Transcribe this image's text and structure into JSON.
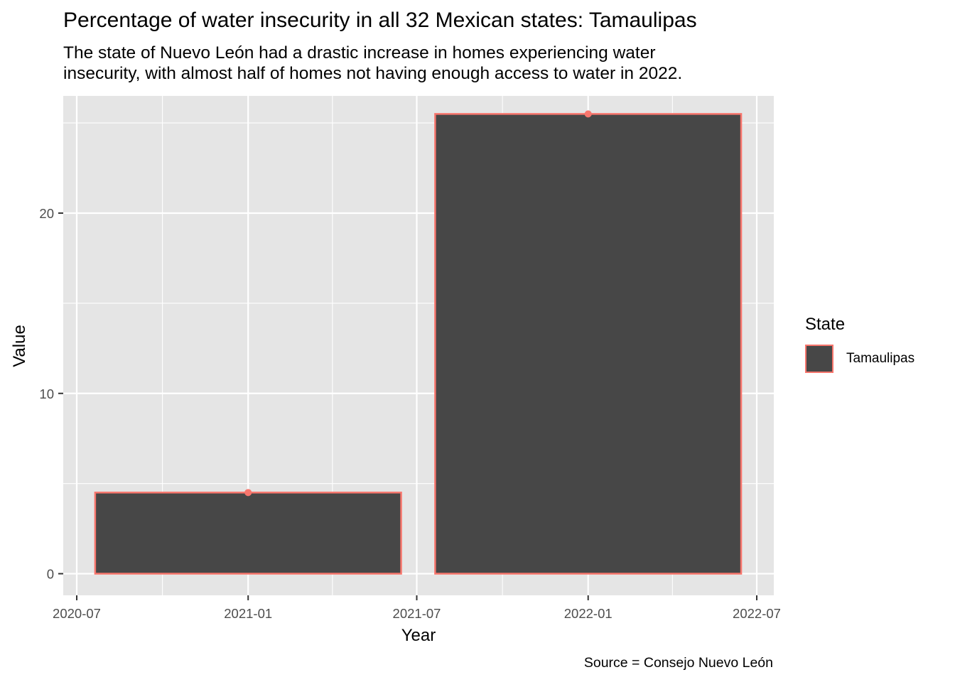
{
  "chart_data": {
    "type": "bar",
    "title": "Percentage of water insecurity in all 32 Mexican states: Tamaulipas",
    "subtitle": "The state of Nuevo León had a drastic increase in homes experiencing water\ninsecurity, with almost half of homes not having enough access to water in 2022.",
    "caption": "Source = Consejo Nuevo León",
    "xlabel": "Year",
    "ylabel": "Value",
    "x_ticks": [
      "2020-07",
      "2021-01",
      "2021-07",
      "2022-01",
      "2022-07"
    ],
    "y_ticks": [
      0,
      10,
      20
    ],
    "ylim": [
      -1.2,
      26.5
    ],
    "series": [
      {
        "name": "Tamaulipas",
        "x": [
          "2021-01",
          "2022-01"
        ],
        "values": [
          4.5,
          25.5
        ],
        "fill": "#474747",
        "outline": "#F8766D"
      }
    ],
    "legend": {
      "title": "State",
      "position": "right",
      "items": [
        "Tamaulipas"
      ]
    },
    "grid": true,
    "panel_background": "#E5E5E5"
  }
}
